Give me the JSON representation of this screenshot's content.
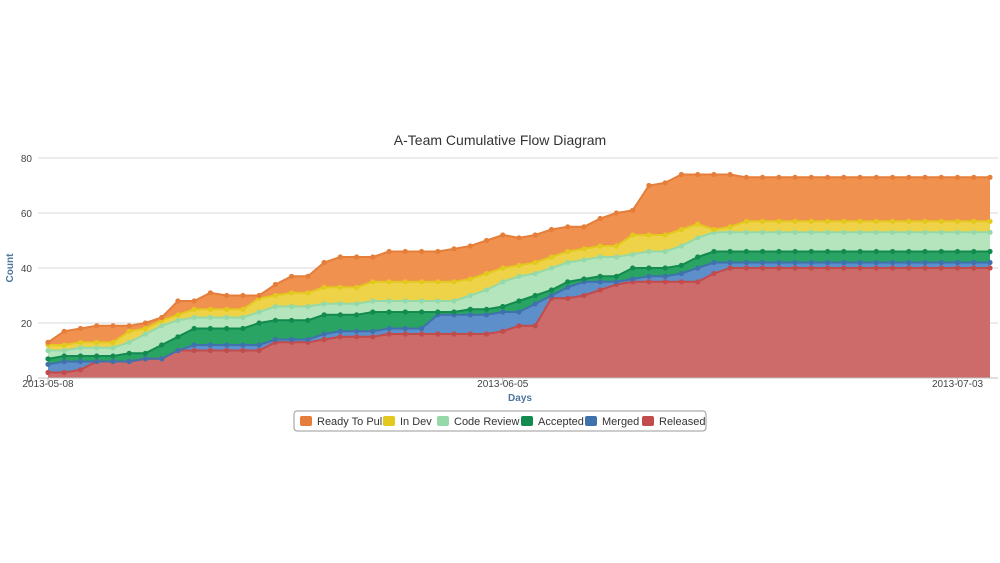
{
  "chart_data": {
    "type": "area",
    "stacking": "cumulative",
    "title": "A-Team Cumulative Flow Diagram",
    "xlabel": "Days",
    "ylabel": "Count",
    "ylim": [
      0,
      80
    ],
    "yticks": [
      0,
      20,
      40,
      60,
      80
    ],
    "grid": true,
    "legend": "bottom-center",
    "x": [
      "2013-05-08",
      "2013-05-09",
      "2013-05-10",
      "2013-05-11",
      "2013-05-12",
      "2013-05-13",
      "2013-05-14",
      "2013-05-15",
      "2013-05-16",
      "2013-05-17",
      "2013-05-18",
      "2013-05-19",
      "2013-05-20",
      "2013-05-21",
      "2013-05-22",
      "2013-05-23",
      "2013-05-24",
      "2013-05-25",
      "2013-05-26",
      "2013-05-27",
      "2013-05-28",
      "2013-05-29",
      "2013-05-30",
      "2013-05-31",
      "2013-06-01",
      "2013-06-02",
      "2013-06-03",
      "2013-06-04",
      "2013-06-05",
      "2013-06-06",
      "2013-06-07",
      "2013-06-08",
      "2013-06-09",
      "2013-06-10",
      "2013-06-11",
      "2013-06-12",
      "2013-06-13",
      "2013-06-14",
      "2013-06-15",
      "2013-06-16",
      "2013-06-17",
      "2013-06-18",
      "2013-06-19",
      "2013-06-20",
      "2013-06-21",
      "2013-06-22",
      "2013-06-23",
      "2013-06-24",
      "2013-06-25",
      "2013-06-26",
      "2013-06-27",
      "2013-06-28",
      "2013-06-29",
      "2013-06-30",
      "2013-07-01",
      "2013-07-02",
      "2013-07-03",
      "2013-07-04",
      "2013-07-05"
    ],
    "xticks": [
      {
        "index": 0,
        "label": "2013-05-08"
      },
      {
        "index": 28,
        "label": "2013-06-05"
      },
      {
        "index": 56,
        "label": "2013-07-03"
      }
    ],
    "series": [
      {
        "name": "Released",
        "color": "#c24b4b",
        "fill": "#cd6b6b",
        "values": [
          2,
          2,
          3,
          6,
          6,
          6,
          7,
          7,
          10,
          10,
          10,
          10,
          10,
          10,
          13,
          13,
          13,
          14,
          15,
          15,
          15,
          16,
          16,
          16,
          16,
          16,
          16,
          16,
          17,
          19,
          19,
          29,
          29,
          30,
          32,
          34,
          35,
          35,
          35,
          35,
          35,
          38,
          40,
          40,
          40,
          40,
          40,
          40,
          40,
          40,
          40,
          40,
          40,
          40,
          40,
          40,
          40,
          40,
          40
        ]
      },
      {
        "name": "Merged",
        "color": "#3f72ad",
        "fill": "#5d8fca",
        "values": [
          5,
          6,
          6,
          6,
          6,
          6,
          7,
          7,
          10,
          12,
          12,
          12,
          12,
          12,
          14,
          14,
          14,
          16,
          17,
          17,
          17,
          18,
          18,
          18,
          23,
          23,
          23,
          23,
          24,
          24,
          27,
          30,
          33,
          35,
          35,
          35,
          36,
          37,
          37,
          38,
          40,
          42,
          42,
          42,
          42,
          42,
          42,
          42,
          42,
          42,
          42,
          42,
          42,
          42,
          42,
          42,
          42,
          42,
          42
        ]
      },
      {
        "name": "Accepted",
        "color": "#138a4e",
        "fill": "#2aa463",
        "values": [
          7,
          8,
          8,
          8,
          8,
          9,
          9,
          12,
          15,
          18,
          18,
          18,
          18,
          20,
          21,
          21,
          21,
          23,
          23,
          23,
          24,
          24,
          24,
          24,
          24,
          24,
          25,
          25,
          26,
          28,
          30,
          32,
          35,
          36,
          37,
          37,
          40,
          40,
          40,
          41,
          44,
          46,
          46,
          46,
          46,
          46,
          46,
          46,
          46,
          46,
          46,
          46,
          46,
          46,
          46,
          46,
          46,
          46,
          46
        ]
      },
      {
        "name": "Code Review",
        "color": "#96d9a8",
        "fill": "#b4e5bd",
        "values": [
          10,
          10,
          11,
          11,
          11,
          13,
          16,
          19,
          21,
          22,
          22,
          22,
          22,
          24,
          26,
          26,
          26,
          27,
          27,
          27,
          28,
          28,
          28,
          28,
          28,
          28,
          30,
          32,
          35,
          37,
          38,
          40,
          42,
          43,
          44,
          44,
          45,
          46,
          46,
          48,
          51,
          53,
          53,
          53,
          53,
          53,
          53,
          53,
          53,
          53,
          53,
          53,
          53,
          53,
          53,
          53,
          53,
          53,
          53
        ]
      },
      {
        "name": "In Dev",
        "color": "#e3c81e",
        "fill": "#eed348",
        "values": [
          12,
          12,
          13,
          13,
          13,
          17,
          18,
          21,
          23,
          25,
          25,
          25,
          25,
          29,
          30,
          31,
          31,
          33,
          33,
          33,
          35,
          35,
          35,
          35,
          35,
          35,
          36,
          38,
          40,
          41,
          42,
          44,
          46,
          47,
          48,
          48,
          52,
          52,
          52,
          54,
          56,
          54,
          55,
          57,
          57,
          57,
          57,
          57,
          57,
          57,
          57,
          57,
          57,
          57,
          57,
          57,
          57,
          57,
          57
        ]
      },
      {
        "name": "Ready To Pull",
        "color": "#e57e3a",
        "fill": "#f0914f",
        "values": [
          13,
          17,
          18,
          19,
          19,
          19,
          20,
          22,
          28,
          28,
          31,
          30,
          30,
          30,
          34,
          37,
          37,
          42,
          44,
          44,
          44,
          46,
          46,
          46,
          46,
          47,
          48,
          50,
          52,
          51,
          52,
          54,
          55,
          55,
          58,
          60,
          61,
          70,
          71,
          74,
          74,
          74,
          74,
          73,
          73,
          73,
          73,
          73,
          73,
          73,
          73,
          73,
          73,
          73,
          73,
          73,
          73,
          73,
          73
        ]
      }
    ]
  }
}
